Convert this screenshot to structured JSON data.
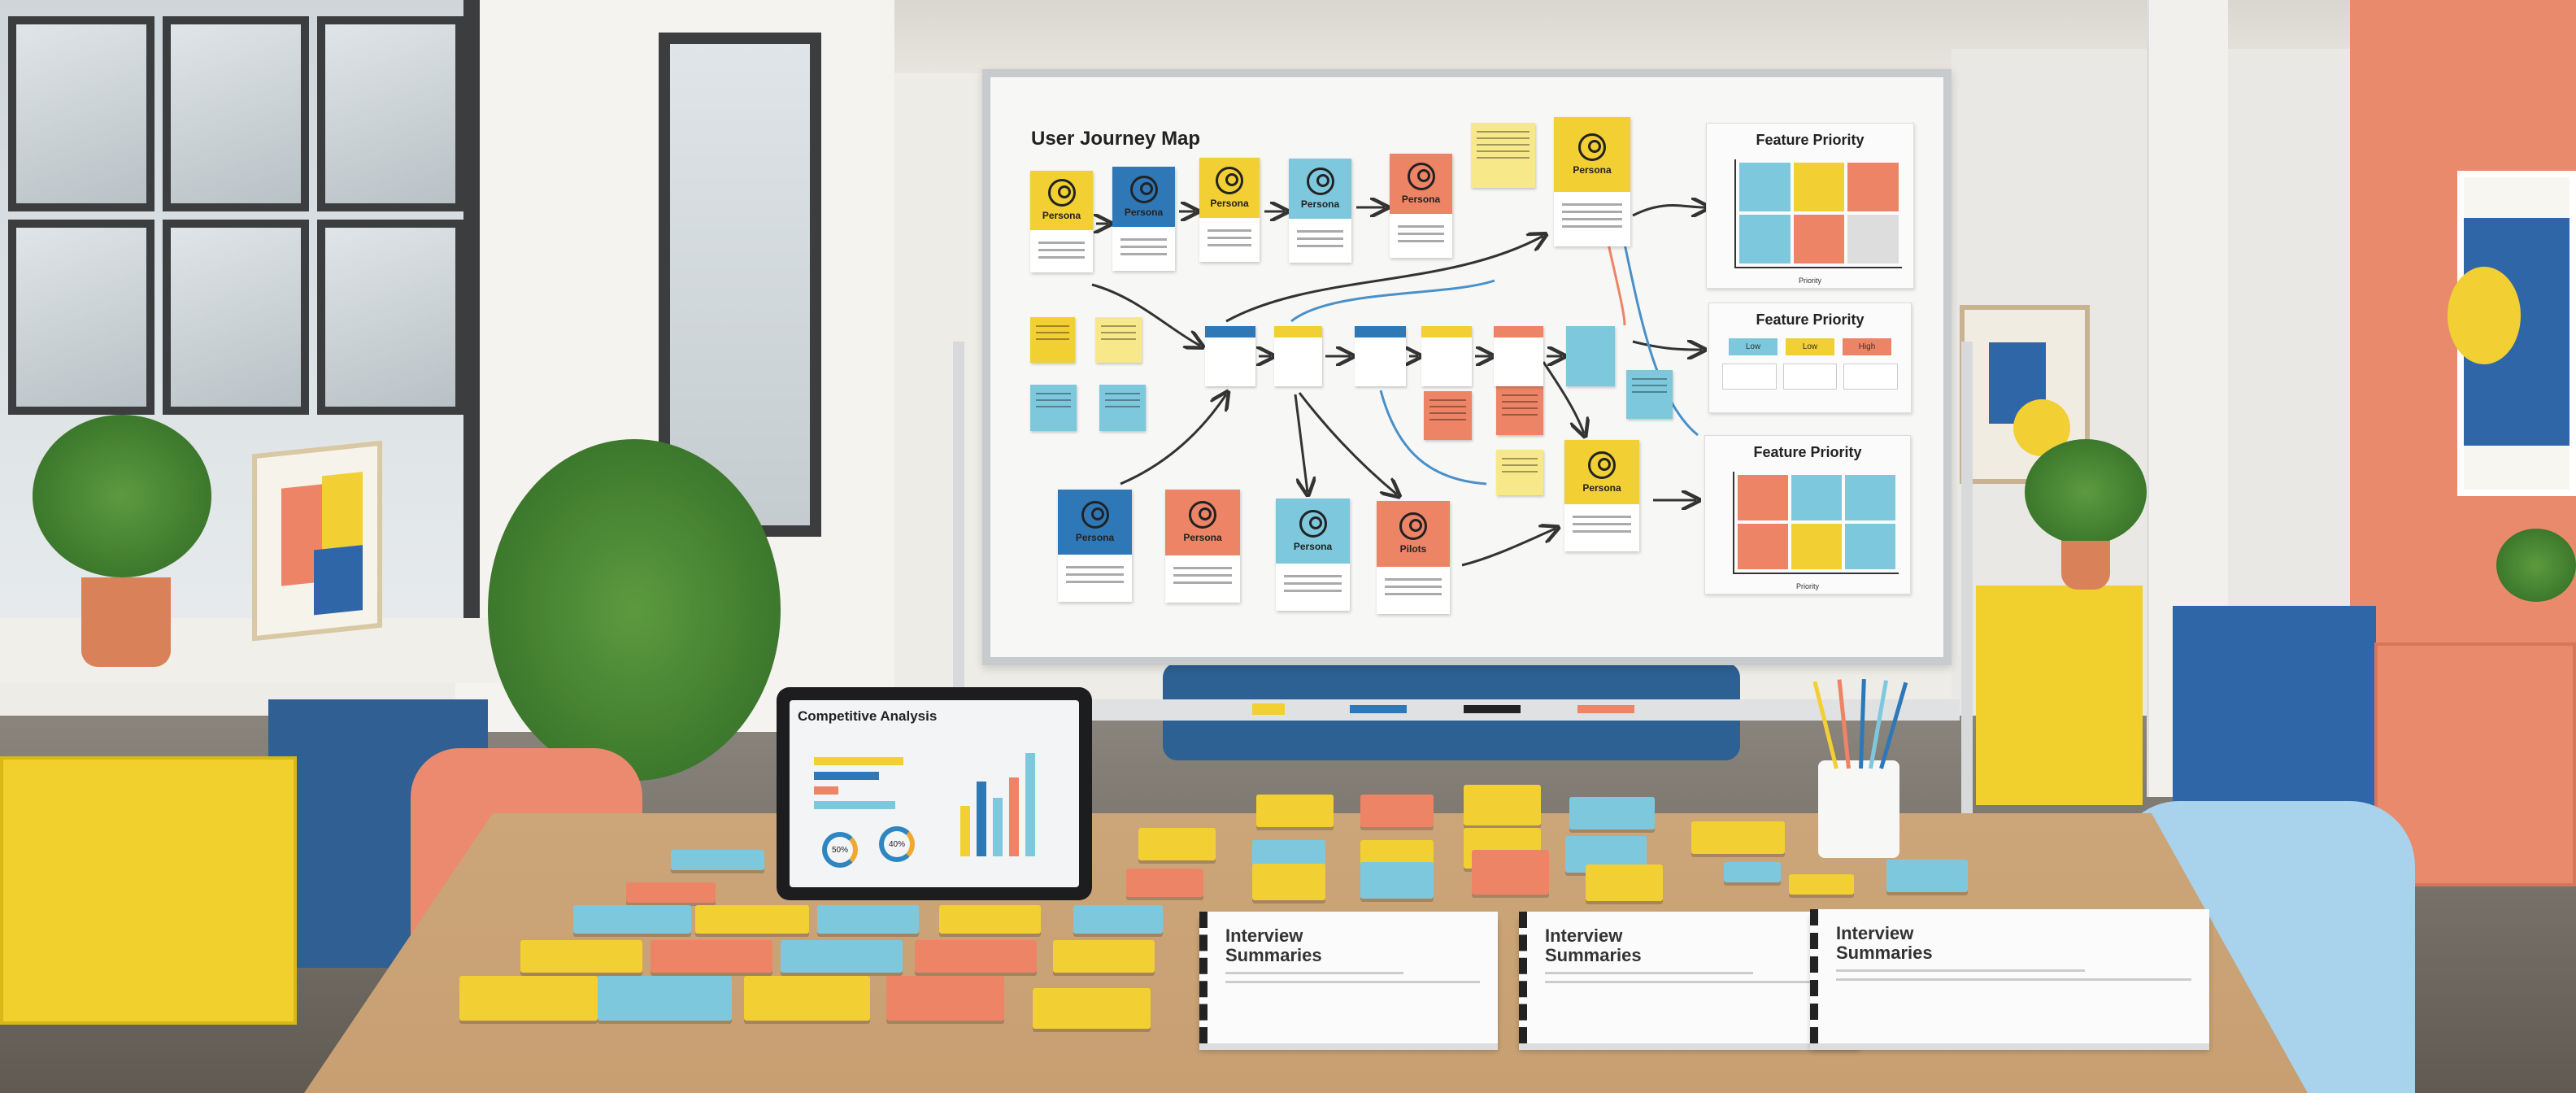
{
  "whiteboard": {
    "title": "User Journey Map",
    "top_personas": [
      "Persona",
      "Persona",
      "Persona",
      "Persona",
      "Persona",
      "Persona"
    ],
    "bottom_personas": [
      "Persona",
      "Persona",
      "Persona",
      "Pilots",
      "Persona"
    ],
    "feature_priority": [
      {
        "title": "Feature Priority",
        "axis_label": "Priority"
      },
      {
        "title": "Feature Priority",
        "levels": [
          "Low",
          "Low",
          "High"
        ]
      },
      {
        "title": "Feature Priority",
        "axis_label": "Priority"
      }
    ]
  },
  "tablet": {
    "title": "Competitive Analysis",
    "rings": [
      "50%",
      "40%"
    ]
  },
  "binders": [
    "Interview Summaries",
    "Interview Summaries",
    "Interview Summaries"
  ],
  "colors": {
    "yellow": "#f2cf32",
    "blue": "#2f78b7",
    "light_blue": "#7ec8de",
    "coral": "#ee8466",
    "pale_yellow": "#f7e98a"
  }
}
